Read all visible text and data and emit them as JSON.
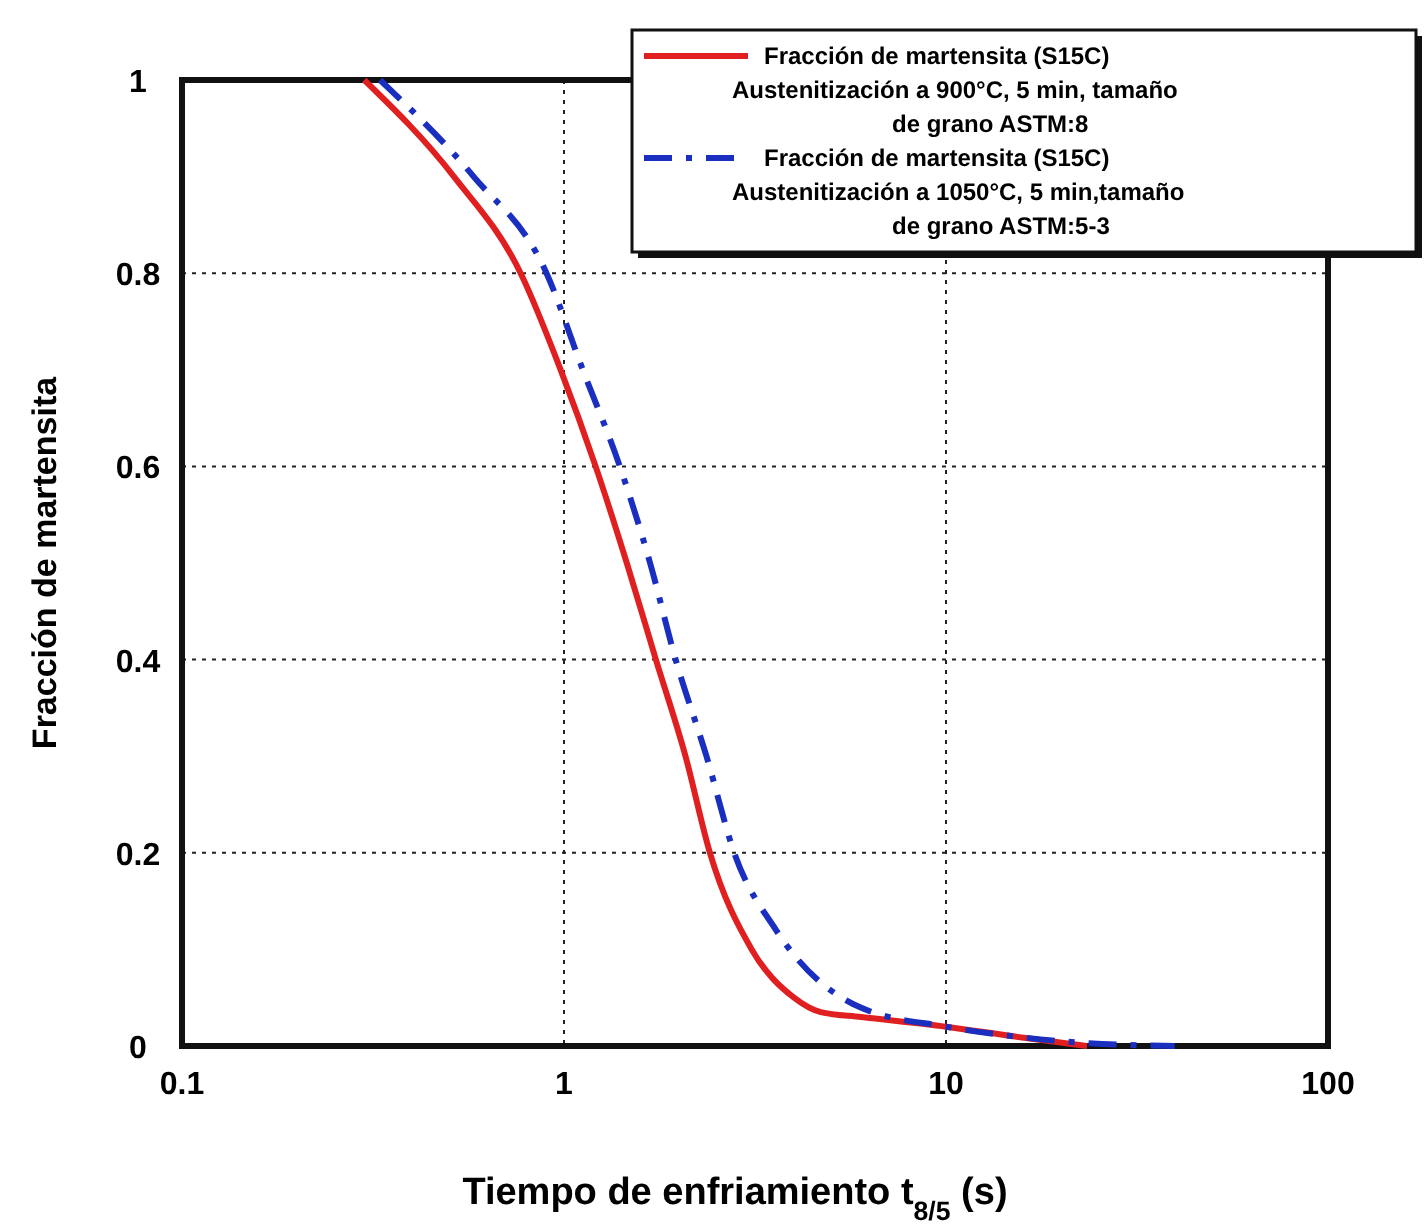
{
  "chart_data": {
    "type": "line",
    "xlabel": "Tiempo de enfriamiento t$_{8/5}$ (s)",
    "ylabel": "Fracción de martensita",
    "log": "x",
    "xlim": [
      0.1,
      100
    ],
    "xticks": [
      0.1,
      1,
      10,
      100
    ],
    "ylim": [
      0,
      1
    ],
    "yticks": [
      0,
      0.2,
      0.4,
      0.6,
      0.8,
      1
    ],
    "grid": true,
    "legend": "top right",
    "series": [
      {
        "name": "Fracción de martensita (S15C) Austenitización a 900°C, 5 min, tamaño de grano ASTM:8",
        "color": "#e02020",
        "line_style": "solid",
        "x": [
          0.3,
          0.515,
          0.77,
          0.98,
          1.21,
          1.46,
          1.74,
          2.08,
          2.41,
          3.1,
          4.0,
          4.7,
          6,
          10,
          15,
          23.4
        ],
        "values": [
          1,
          0.9,
          0.8,
          0.7,
          0.6,
          0.5,
          0.4,
          0.3,
          0.2,
          0.1,
          0.05,
          0.035,
          0.03,
          0.02,
          0.01,
          0
        ]
      },
      {
        "name": "Fracción de martensita (S15C) Austenitización a 1050°C, 5 min,tamaño de grano ASTM:5-3",
        "color": "#1a2fc0",
        "line_style": "dashed",
        "x": [
          0.33,
          0.58,
          0.9,
          1.12,
          1.4,
          1.68,
          1.96,
          2.36,
          2.79,
          3.59,
          5.96,
          10,
          15,
          23.4,
          39.7
        ],
        "values": [
          1,
          0.9,
          0.8,
          0.7,
          0.6,
          0.5,
          0.4,
          0.3,
          0.2,
          0.12,
          0.04,
          0.02,
          0.01,
          0.003,
          0
        ]
      }
    ]
  }
}
